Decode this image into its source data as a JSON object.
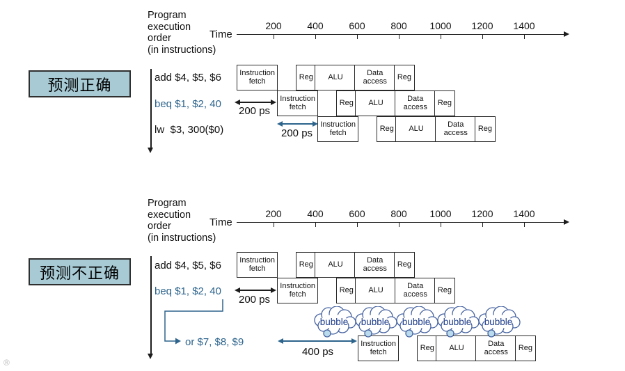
{
  "colors": {
    "ink_black": "#1c1c1c",
    "accent_blue": "#2d648c",
    "tag_fill": "#a7cad5",
    "tag_border": "#2f2f2f",
    "box_border": "#292929",
    "cloud_stroke": "#44619f",
    "cloud_text": "#1d3c8a",
    "cloud_tail_fill": "#badbed"
  },
  "stage_labels": {
    "if": "Instruction fetch",
    "reg": "Reg",
    "alu": "ALU",
    "mem": "Data access",
    "regw": "Reg"
  },
  "watermark": "®",
  "sections": [
    {
      "tag": "预测正确",
      "program_order_lines": [
        "Program",
        "execution",
        "order",
        "(in instructions)"
      ],
      "time_label": "Time",
      "ticks": [
        "200",
        "400",
        "600",
        "800",
        "1000",
        "1200",
        "1400"
      ],
      "instructions": [
        {
          "text": "add $4, $5, $6",
          "blue": false
        },
        {
          "text": "beq $1, $2, 40",
          "blue": true
        },
        {
          "text": "lw  $3, 300($0)",
          "blue": false
        }
      ],
      "rows": [
        {
          "slot": 0,
          "cells": [
            "if",
            "reg",
            "alu",
            "mem",
            "regw"
          ]
        },
        {
          "slot": 1,
          "cells": [
            "if",
            "reg",
            "alu",
            "mem",
            "regw"
          ]
        },
        {
          "slot": 2,
          "cells": [
            "if",
            "reg",
            "alu",
            "mem",
            "regw"
          ]
        }
      ],
      "annotations": [
        {
          "text": "200 ps",
          "blue": false
        },
        {
          "text": "200 ps",
          "blue": true
        }
      ]
    },
    {
      "tag": "预测不正确",
      "program_order_lines": [
        "Program",
        "execution",
        "order",
        "(in instructions)"
      ],
      "time_label": "Time",
      "ticks": [
        "200",
        "400",
        "600",
        "800",
        "1000",
        "1200",
        "1400"
      ],
      "instructions": [
        {
          "text": "add $4, $5, $6",
          "blue": false
        },
        {
          "text": "beq $1, $2, 40",
          "blue": true
        },
        {
          "text": "or $7, $8, $9",
          "blue": true
        }
      ],
      "rows": [
        {
          "slot": 0,
          "cells": [
            "if",
            "reg",
            "alu",
            "mem",
            "regw"
          ]
        },
        {
          "slot": 1,
          "cells": [
            "if",
            "reg",
            "alu",
            "mem",
            "regw"
          ]
        },
        {
          "slot": 3,
          "cells": [
            "if",
            "reg",
            "alu",
            "mem",
            "regw"
          ]
        }
      ],
      "bubbles": [
        "bubble",
        "bubble",
        "bubble",
        "bubble",
        "bubble"
      ],
      "annotations": [
        {
          "text": "200 ps",
          "blue": false
        },
        {
          "text": "400 ps",
          "blue": true
        }
      ]
    }
  ]
}
